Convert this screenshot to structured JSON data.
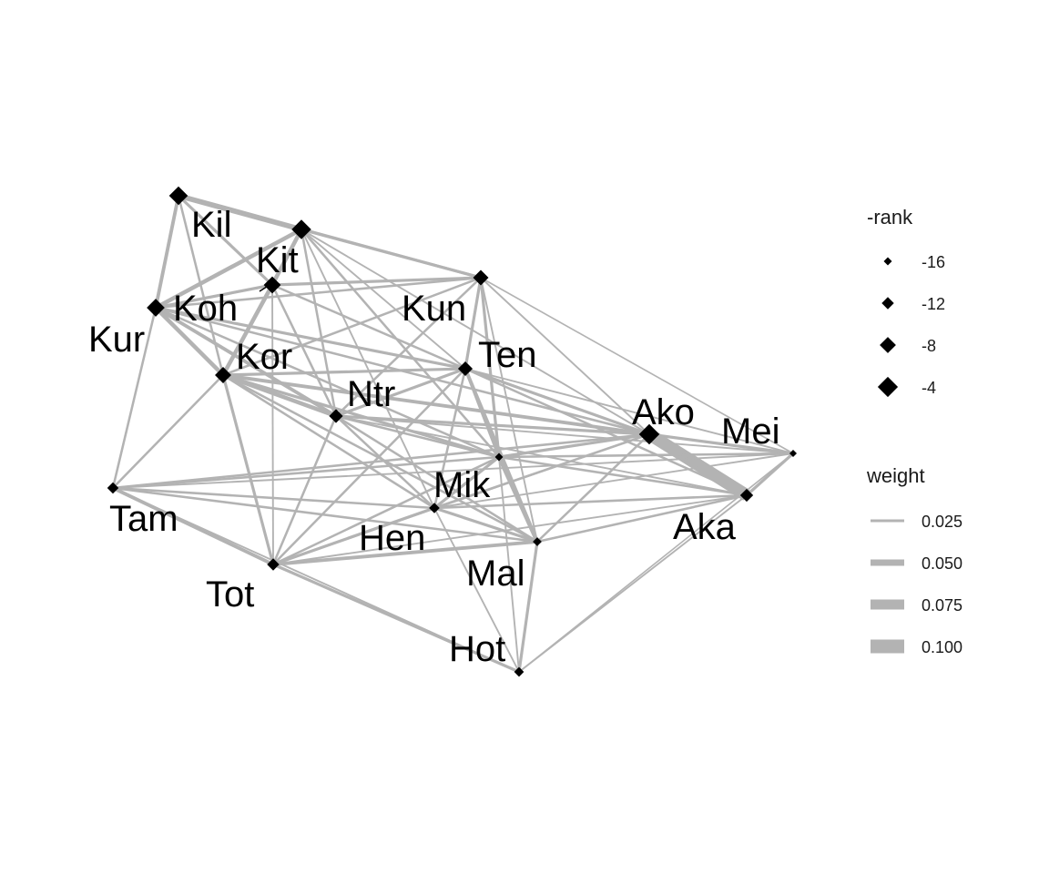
{
  "colors": {
    "edge": "#b3b3b3",
    "node": "#000000",
    "legend_edge": "#b3b3b3"
  },
  "network": {
    "nodes": [
      {
        "id": "Kil",
        "rank": 3
      },
      {
        "id": "Kit",
        "rank": 2
      },
      {
        "id": "Koh",
        "rank": 5
      },
      {
        "id": "Kur",
        "rank": 4
      },
      {
        "id": "Kun",
        "rank": 7
      },
      {
        "id": "Kor",
        "rank": 6
      },
      {
        "id": "Ten",
        "rank": 8
      },
      {
        "id": "Ntr",
        "rank": 9
      },
      {
        "id": "Ako",
        "rank": 1
      },
      {
        "id": "Mei",
        "rank": 17
      },
      {
        "id": "Aka",
        "rank": 10
      },
      {
        "id": "Mik",
        "rank": 16
      },
      {
        "id": "Tam",
        "rank": 12
      },
      {
        "id": "Hen",
        "rank": 13
      },
      {
        "id": "Mal",
        "rank": 15
      },
      {
        "id": "Tot",
        "rank": 11
      },
      {
        "id": "Hot",
        "rank": 14
      }
    ],
    "edges": [
      {
        "s": "Kil",
        "t": "Kit",
        "w": 0.04
      },
      {
        "s": "Kil",
        "t": "Koh",
        "w": 0.02
      },
      {
        "s": "Kil",
        "t": "Kur",
        "w": 0.025
      },
      {
        "s": "Kil",
        "t": "Kor",
        "w": 0.015
      },
      {
        "s": "Kil",
        "t": "Kun",
        "w": 0.02
      },
      {
        "s": "Kit",
        "t": "Koh",
        "w": 0.03
      },
      {
        "s": "Kit",
        "t": "Kur",
        "w": 0.03
      },
      {
        "s": "Kit",
        "t": "Kor",
        "w": 0.02
      },
      {
        "s": "Kit",
        "t": "Kun",
        "w": 0.02
      },
      {
        "s": "Kit",
        "t": "Ntr",
        "w": 0.015
      },
      {
        "s": "Kit",
        "t": "Ten",
        "w": 0.01
      },
      {
        "s": "Kit",
        "t": "Mik",
        "w": 0.015
      },
      {
        "s": "Kit",
        "t": "Hen",
        "w": 0.01
      },
      {
        "s": "Kit",
        "t": "Ako",
        "w": 0.01
      },
      {
        "s": "Koh",
        "t": "Kur",
        "w": 0.02
      },
      {
        "s": "Koh",
        "t": "Kor",
        "w": 0.03
      },
      {
        "s": "Koh",
        "t": "Kun",
        "w": 0.02
      },
      {
        "s": "Koh",
        "t": "Ten",
        "w": 0.015
      },
      {
        "s": "Koh",
        "t": "Ntr",
        "w": 0.015
      },
      {
        "s": "Koh",
        "t": "Tot",
        "w": 0.01
      },
      {
        "s": "Kur",
        "t": "Kor",
        "w": 0.03
      },
      {
        "s": "Kur",
        "t": "Ntr",
        "w": 0.025
      },
      {
        "s": "Kur",
        "t": "Ten",
        "w": 0.02
      },
      {
        "s": "Kur",
        "t": "Mik",
        "w": 0.015
      },
      {
        "s": "Kur",
        "t": "Ako",
        "w": 0.015
      },
      {
        "s": "Kur",
        "t": "Tam",
        "w": 0.015
      },
      {
        "s": "Kur",
        "t": "Kun",
        "w": 0.015
      },
      {
        "s": "Kun",
        "t": "Ten",
        "w": 0.02
      },
      {
        "s": "Kun",
        "t": "Mik",
        "w": 0.02
      },
      {
        "s": "Kun",
        "t": "Ntr",
        "w": 0.015
      },
      {
        "s": "Kun",
        "t": "Kor",
        "w": 0.015
      },
      {
        "s": "Kun",
        "t": "Ako",
        "w": 0.01
      },
      {
        "s": "Kun",
        "t": "Mei",
        "w": 0.008
      },
      {
        "s": "Kun",
        "t": "Mal",
        "w": 0.01
      },
      {
        "s": "Kor",
        "t": "Ntr",
        "w": 0.03
      },
      {
        "s": "Kor",
        "t": "Ten",
        "w": 0.02
      },
      {
        "s": "Kor",
        "t": "Tot",
        "w": 0.02
      },
      {
        "s": "Kor",
        "t": "Tam",
        "w": 0.015
      },
      {
        "s": "Kor",
        "t": "Mik",
        "w": 0.02
      },
      {
        "s": "Kor",
        "t": "Ako",
        "w": 0.025
      },
      {
        "s": "Kor",
        "t": "Mal",
        "w": 0.015
      },
      {
        "s": "Kor",
        "t": "Hen",
        "w": 0.015
      },
      {
        "s": "Ten",
        "t": "Ntr",
        "w": 0.02
      },
      {
        "s": "Ten",
        "t": "Mik",
        "w": 0.02
      },
      {
        "s": "Ten",
        "t": "Mal",
        "w": 0.025
      },
      {
        "s": "Ten",
        "t": "Ako",
        "w": 0.02
      },
      {
        "s": "Ten",
        "t": "Aka",
        "w": 0.015
      },
      {
        "s": "Ten",
        "t": "Hen",
        "w": 0.015
      },
      {
        "s": "Ten",
        "t": "Tot",
        "w": 0.015
      },
      {
        "s": "Ten",
        "t": "Mei",
        "w": 0.01
      },
      {
        "s": "Ntr",
        "t": "Ako",
        "w": 0.02
      },
      {
        "s": "Ntr",
        "t": "Mik",
        "w": 0.015
      },
      {
        "s": "Ntr",
        "t": "Mal",
        "w": 0.015
      },
      {
        "s": "Ntr",
        "t": "Tot",
        "w": 0.015
      },
      {
        "s": "Ntr",
        "t": "Hen",
        "w": 0.015
      },
      {
        "s": "Ntr",
        "t": "Aka",
        "w": 0.01
      },
      {
        "s": "Ntr",
        "t": "Mei",
        "w": 0.01
      },
      {
        "s": "Ako",
        "t": "Aka",
        "w": 0.1
      },
      {
        "s": "Ako",
        "t": "Mei",
        "w": 0.02
      },
      {
        "s": "Ako",
        "t": "Mik",
        "w": 0.02
      },
      {
        "s": "Ako",
        "t": "Mal",
        "w": 0.015
      },
      {
        "s": "Ako",
        "t": "Hen",
        "w": 0.015
      },
      {
        "s": "Ako",
        "t": "Tam",
        "w": 0.015
      },
      {
        "s": "Ako",
        "t": "Tot",
        "w": 0.01
      },
      {
        "s": "Mei",
        "t": "Mik",
        "w": 0.015
      },
      {
        "s": "Mei",
        "t": "Hen",
        "w": 0.01
      },
      {
        "s": "Mei",
        "t": "Tam",
        "w": 0.01
      },
      {
        "s": "Mei",
        "t": "Aka",
        "w": 0.02
      },
      {
        "s": "Mei",
        "t": "Hot",
        "w": 0.008
      },
      {
        "s": "Aka",
        "t": "Mik",
        "w": 0.015
      },
      {
        "s": "Aka",
        "t": "Hen",
        "w": 0.015
      },
      {
        "s": "Aka",
        "t": "Mal",
        "w": 0.015
      },
      {
        "s": "Aka",
        "t": "Hot",
        "w": 0.01
      },
      {
        "s": "Aka",
        "t": "Tot",
        "w": 0.01
      },
      {
        "s": "Mik",
        "t": "Mal",
        "w": 0.03
      },
      {
        "s": "Mik",
        "t": "Hen",
        "w": 0.02
      },
      {
        "s": "Mik",
        "t": "Tam",
        "w": 0.015
      },
      {
        "s": "Mik",
        "t": "Tot",
        "w": 0.015
      },
      {
        "s": "Mik",
        "t": "Hot",
        "w": 0.01
      },
      {
        "s": "Tam",
        "t": "Tot",
        "w": 0.025
      },
      {
        "s": "Tam",
        "t": "Hen",
        "w": 0.015
      },
      {
        "s": "Tam",
        "t": "Hot",
        "w": 0.01
      },
      {
        "s": "Tam",
        "t": "Mal",
        "w": 0.015
      },
      {
        "s": "Hen",
        "t": "Tot",
        "w": 0.02
      },
      {
        "s": "Hen",
        "t": "Mal",
        "w": 0.02
      },
      {
        "s": "Hen",
        "t": "Hot",
        "w": 0.01
      },
      {
        "s": "Mal",
        "t": "Tot",
        "w": 0.025
      },
      {
        "s": "Mal",
        "t": "Hot",
        "w": 0.02
      },
      {
        "s": "Tot",
        "t": "Hot",
        "w": 0.02
      }
    ]
  },
  "legend": {
    "rank": {
      "title": "-rank",
      "entries": [
        {
          "label": "-16",
          "value": -16
        },
        {
          "label": "-12",
          "value": -12
        },
        {
          "label": "-8",
          "value": -8
        },
        {
          "label": "-4",
          "value": -4
        }
      ]
    },
    "weight": {
      "title": "weight",
      "entries": [
        {
          "label": "0.025",
          "value": 0.025
        },
        {
          "label": "0.050",
          "value": 0.05
        },
        {
          "label": "0.075",
          "value": 0.075
        },
        {
          "label": "0.100",
          "value": 0.1
        }
      ]
    }
  }
}
